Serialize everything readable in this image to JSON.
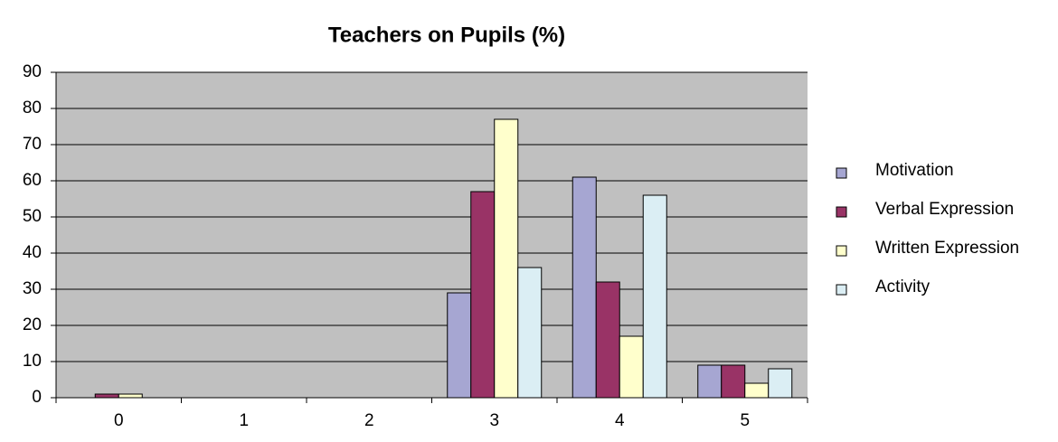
{
  "chart_data": {
    "type": "bar",
    "title": "Teachers on Pupils (%)",
    "categories": [
      "0",
      "1",
      "2",
      "3",
      "4",
      "5"
    ],
    "series": [
      {
        "name": "Motivation",
        "color": "#a6a6d2",
        "values": [
          0,
          0,
          0,
          29,
          61,
          9
        ]
      },
      {
        "name": "Verbal Expression",
        "color": "#993366",
        "values": [
          1,
          0,
          0,
          57,
          32,
          9
        ]
      },
      {
        "name": "Written Expression",
        "color": "#ffffcc",
        "values": [
          1,
          0,
          0,
          77,
          17,
          4
        ]
      },
      {
        "name": "Activity",
        "color": "#dbeef4",
        "values": [
          0,
          0,
          0,
          36,
          56,
          8
        ]
      }
    ],
    "ylim": [
      0,
      90
    ],
    "yticks": [
      0,
      10,
      20,
      30,
      40,
      50,
      60,
      70,
      80,
      90
    ],
    "grid": true,
    "legend": "right"
  }
}
